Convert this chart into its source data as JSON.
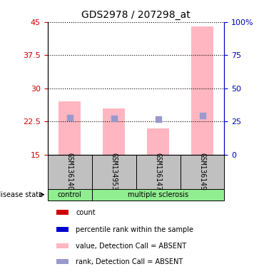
{
  "title": "GDS2978 / 207298_at",
  "samples": [
    "GSM136140",
    "GSM134953",
    "GSM136147",
    "GSM136149"
  ],
  "disease_state_groups": {
    "control": [
      "GSM136140"
    ],
    "multiple sclerosis": [
      "GSM134953",
      "GSM136147",
      "GSM136149"
    ]
  },
  "bar_values": [
    27.0,
    25.5,
    21.0,
    44.0
  ],
  "rank_values": [
    28.0,
    27.5,
    26.5,
    29.5
  ],
  "ylim_left": [
    15,
    45
  ],
  "ylim_right": [
    0,
    100
  ],
  "yticks_left": [
    15,
    22.5,
    30,
    37.5,
    45
  ],
  "ytick_labels_left": [
    "15",
    "22.5",
    "30",
    "37.5",
    "45"
  ],
  "yticks_right": [
    0,
    25,
    50,
    75,
    100
  ],
  "ytick_labels_right": [
    "0",
    "25",
    "50",
    "75",
    "100%"
  ],
  "bar_color": "#FFB6C1",
  "rank_marker_color": "#9999CC",
  "bg_color_plot": "#FFFFFF",
  "bg_color_label": "#C0C0C0",
  "label_control_color": "#90EE90",
  "label_ms_color": "#90EE90",
  "grid_color": "black",
  "grid_linestyle": "dotted",
  "left_axis_color": "#CC0000",
  "right_axis_color": "#0000CC",
  "legend_items": [
    {
      "color": "#CC0000",
      "marker": "s",
      "label": "count"
    },
    {
      "color": "#0000CC",
      "marker": "s",
      "label": "percentile rank within the sample"
    },
    {
      "color": "#FFB6C1",
      "marker": "s",
      "label": "value, Detection Call = ABSENT"
    },
    {
      "color": "#9999CC",
      "marker": "s",
      "label": "rank, Detection Call = ABSENT"
    }
  ]
}
